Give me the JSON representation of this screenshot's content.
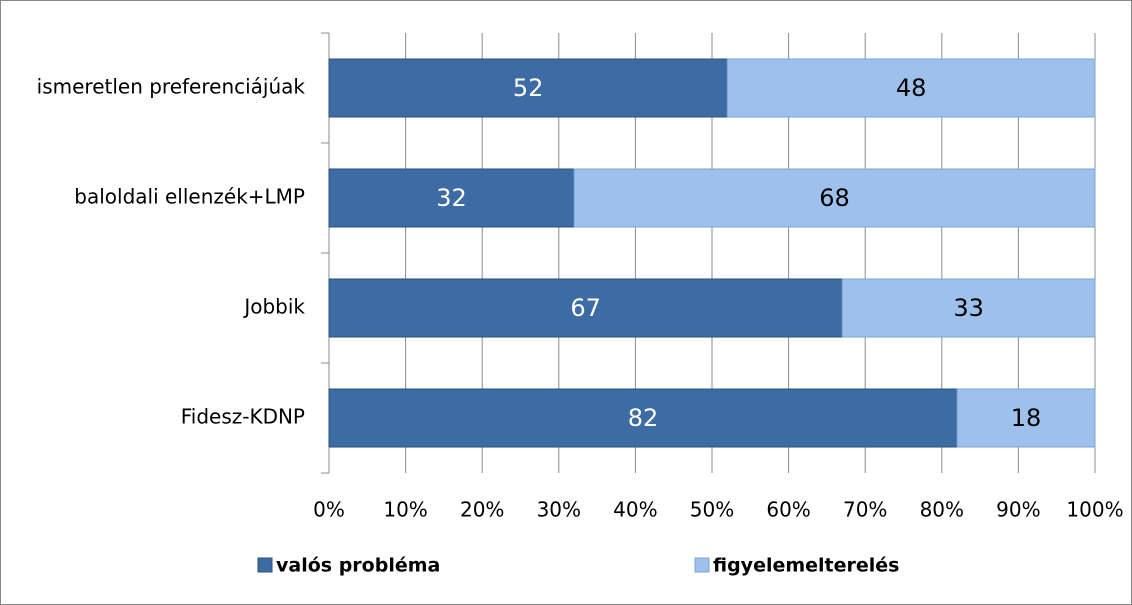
{
  "chart_data": {
    "type": "bar",
    "orientation": "horizontal",
    "stacked": true,
    "categories": [
      "ismeretlen preferenciájúak",
      "baloldali ellenzék+LMP",
      "Jobbik",
      "Fidesz-KDNP"
    ],
    "series": [
      {
        "name": "valós probléma",
        "color": "#3d6ba3",
        "values": [
          52,
          32,
          67,
          82
        ]
      },
      {
        "name": "figyelemelterelés",
        "color": "#9dc1ec",
        "values": [
          48,
          68,
          33,
          18
        ]
      }
    ],
    "xlim": [
      0,
      100
    ],
    "xticks": [
      {
        "value": 0,
        "label": "0%"
      },
      {
        "value": 10,
        "label": "10%"
      },
      {
        "value": 20,
        "label": "20%"
      },
      {
        "value": 30,
        "label": "30%"
      },
      {
        "value": 40,
        "label": "40%"
      },
      {
        "value": 50,
        "label": "50%"
      },
      {
        "value": 60,
        "label": "60%"
      },
      {
        "value": 70,
        "label": "70%"
      },
      {
        "value": 80,
        "label": "80%"
      },
      {
        "value": 90,
        "label": "90%"
      },
      {
        "value": 100,
        "label": "100%"
      }
    ],
    "grid": true,
    "legend": "bottom"
  }
}
